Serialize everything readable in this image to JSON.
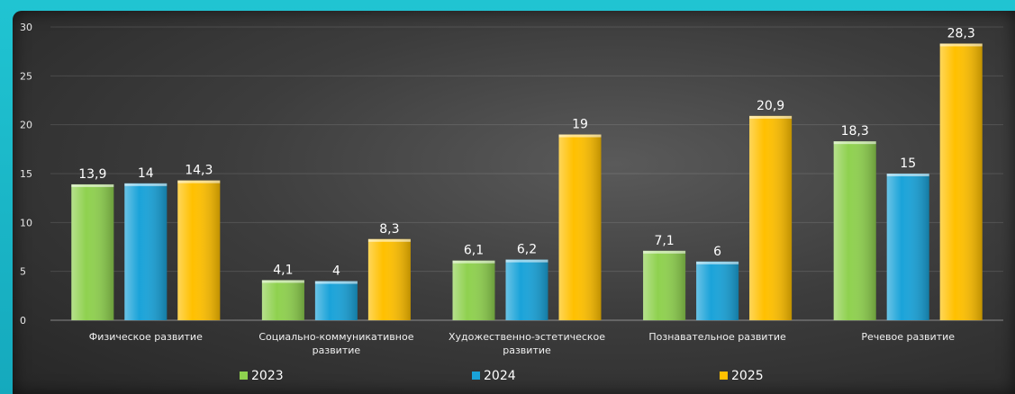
{
  "chart_data": {
    "type": "bar",
    "categories": [
      [
        "Физическое развитие"
      ],
      [
        "Социально-коммуникативное",
        "развитие"
      ],
      [
        "Художественно-эстетическое",
        "развитие"
      ],
      [
        "Познавательное  развитие"
      ],
      [
        "Речевое развитие"
      ]
    ],
    "series": [
      {
        "name": "2023",
        "color": "#8fd14f",
        "values": [
          13.9,
          4.1,
          6.1,
          7.1,
          18.3
        ],
        "labels": [
          "13,9",
          "4,1",
          "6,1",
          "7,1",
          "18,3"
        ]
      },
      {
        "name": "2024",
        "color": "#1aa3d9",
        "values": [
          14,
          4,
          6.2,
          6,
          15
        ],
        "labels": [
          "14",
          "4",
          "6,2",
          "6",
          "15"
        ]
      },
      {
        "name": "2025",
        "color": "#ffc000",
        "values": [
          14.3,
          8.3,
          19,
          20.9,
          28.3
        ],
        "labels": [
          "14,3",
          "8,3",
          "19",
          "20,9",
          "28,3"
        ]
      }
    ],
    "yticks": [
      "0",
      "5",
      "10",
      "15",
      "20",
      "25",
      "30"
    ],
    "ylim": [
      0,
      30
    ],
    "grid": true,
    "legend": "bottom"
  }
}
